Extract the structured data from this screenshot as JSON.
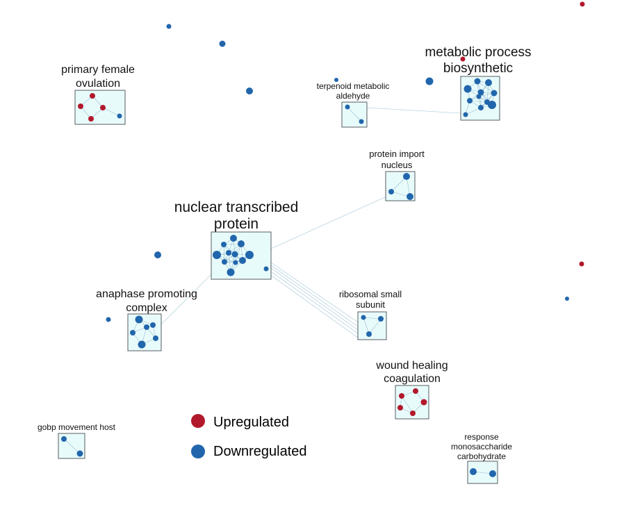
{
  "colors": {
    "upregulated": "#b2182b",
    "downregulated": "#2166ac",
    "box_fill": "#e8fbfb",
    "box_stroke": "#555b5f",
    "edge": "#b8d3e0"
  },
  "legend": {
    "up_label": "Upregulated",
    "down_label": "Downregulated"
  },
  "clusters": [
    {
      "id": "primary-female",
      "lines": [
        "primary female",
        "ovulation"
      ]
    },
    {
      "id": "terpenoid",
      "lines": [
        "terpenoid metabolic",
        "aldehyde"
      ]
    },
    {
      "id": "metabolic",
      "lines": [
        "metabolic process",
        "biosynthetic"
      ]
    },
    {
      "id": "protein-import",
      "lines": [
        "protein import",
        "nucleus"
      ]
    },
    {
      "id": "nuclear",
      "lines": [
        "nuclear transcribed",
        "protein"
      ]
    },
    {
      "id": "anaphase",
      "lines": [
        "anaphase promoting",
        "complex"
      ]
    },
    {
      "id": "ribosomal",
      "lines": [
        "ribosomal small",
        "subunit"
      ]
    },
    {
      "id": "wound",
      "lines": [
        "wound healing",
        "coagulation"
      ]
    },
    {
      "id": "gobp",
      "lines": [
        "gobp movement host"
      ]
    },
    {
      "id": "response",
      "lines": [
        "response",
        "monosaccharide",
        "carbohydrate"
      ]
    }
  ],
  "node_regulation": {
    "primary-female": [
      "up",
      "up",
      "up",
      "up",
      "down"
    ],
    "terpenoid": [
      "down",
      "down"
    ],
    "metabolic": [
      "down",
      "down",
      "down",
      "down",
      "down",
      "down",
      "down",
      "down",
      "down",
      "down",
      "down"
    ],
    "protein-import": [
      "down",
      "down",
      "down"
    ],
    "nuclear": [
      "down",
      "down",
      "down",
      "down",
      "down",
      "down",
      "down",
      "down",
      "down",
      "down",
      "down",
      "down"
    ],
    "anaphase": [
      "down",
      "down",
      "down",
      "down",
      "down",
      "down"
    ],
    "ribosomal": [
      "down",
      "down",
      "down"
    ],
    "wound": [
      "up",
      "up",
      "up",
      "up",
      "up"
    ],
    "gobp": [
      "down",
      "down"
    ],
    "response": [
      "down",
      "down"
    ],
    "singletons": [
      "down",
      "down",
      "down",
      "up",
      "down",
      "up",
      "down",
      "down",
      "down",
      "up",
      "down"
    ]
  }
}
